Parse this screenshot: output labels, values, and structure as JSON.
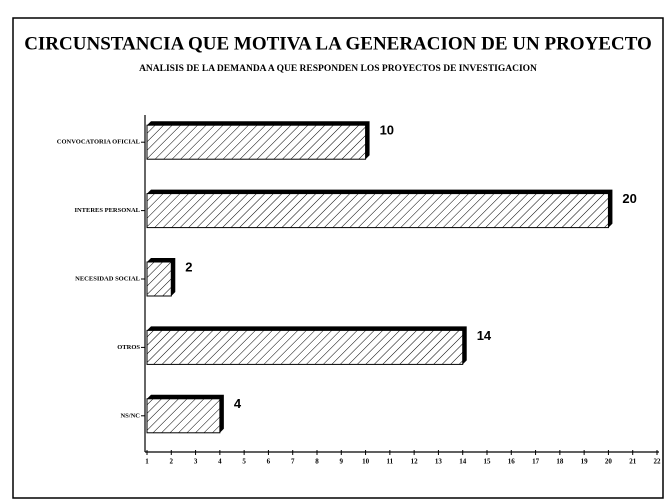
{
  "chart_data": {
    "type": "bar",
    "orientation": "horizontal",
    "title": "CIRCUNSTANCIA QUE MOTIVA LA GENERACION DE UN PROYECTO",
    "subtitle": "ANALISIS DE LA DEMANDA A QUE RESPONDEN LOS PROYECTOS DE INVESTIGACION",
    "categories": [
      "CONVOCATORIA OFICIAL",
      "INTERES PERSONAL",
      "NECESIDAD SOCIAL",
      "OTROS",
      "NS/NC"
    ],
    "values": [
      10,
      20,
      2,
      14,
      4
    ],
    "color": "#000000",
    "xlim": [
      1,
      22
    ],
    "xticks": [
      1,
      2,
      3,
      4,
      5,
      6,
      7,
      8,
      9,
      10,
      11,
      12,
      13,
      14,
      15,
      16,
      17,
      18,
      19,
      20,
      21,
      22
    ]
  }
}
